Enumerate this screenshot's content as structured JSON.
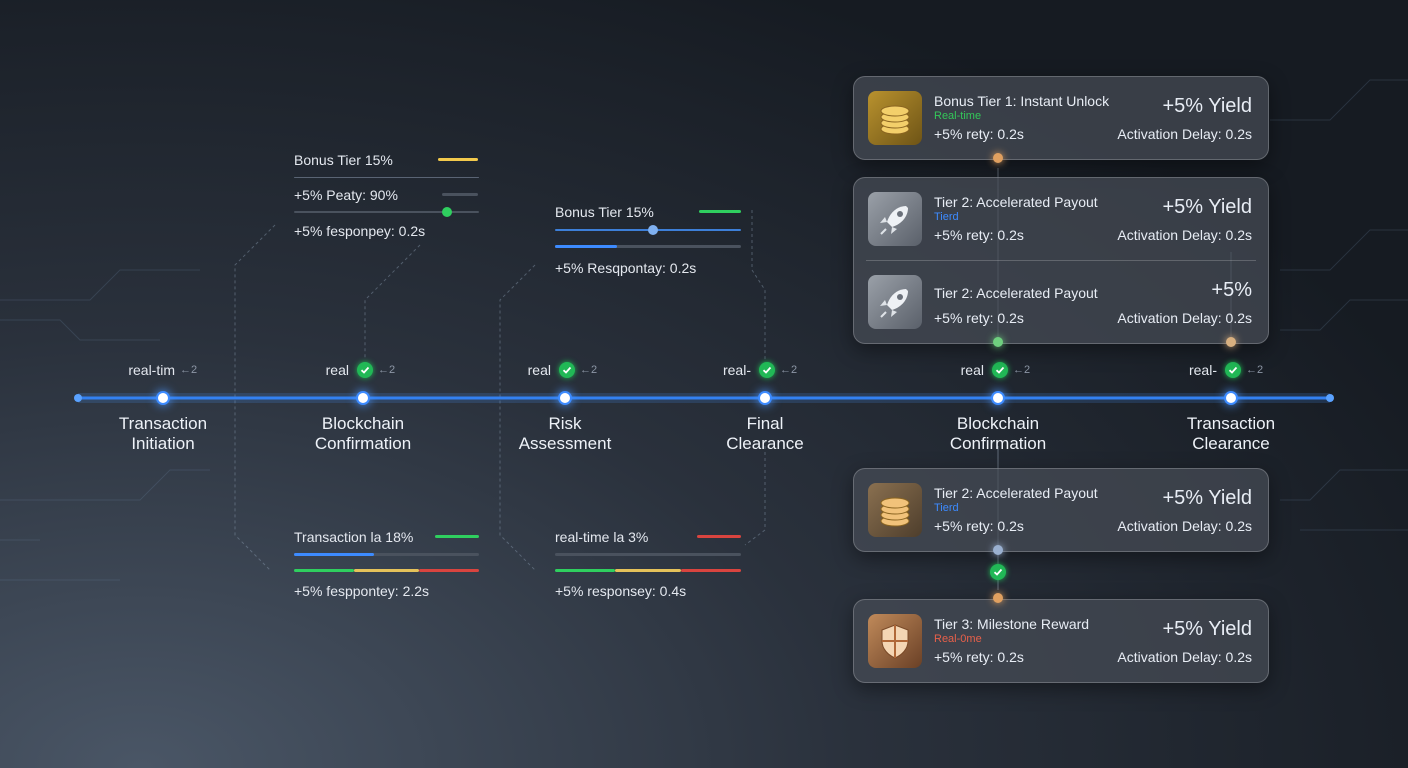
{
  "timeline": [
    {
      "status": "real-tim",
      "check": false,
      "tag": "←2",
      "label": [
        "Transaction",
        "Initiation"
      ]
    },
    {
      "status": "real",
      "check": true,
      "tag": "←2",
      "label": [
        "Blockchain",
        "Confirmation"
      ]
    },
    {
      "status": "real",
      "check": true,
      "tag": "←2",
      "label": [
        "Risk",
        "Assessment"
      ]
    },
    {
      "status": "real-",
      "check": true,
      "tag": "←2",
      "label": [
        "Final",
        "Clearance"
      ]
    },
    {
      "status": "real",
      "check": true,
      "tag": "←2",
      "label": [
        "Blockchain",
        "Confirmation"
      ]
    },
    {
      "status": "real-",
      "check": true,
      "tag": "←2",
      "label": [
        "Transaction",
        "Clearance"
      ]
    }
  ],
  "panels": [
    {
      "rows": [
        "Bonus Tier 15%",
        "+5% Peaty: 90%",
        "+5% fesponpey: 0.2s"
      ]
    },
    {
      "rows": [
        "Bonus Tier 15%",
        "+5% Resqpontay: 0.2s"
      ]
    },
    {
      "rows": [
        "Transaction la 18%",
        "+5% fesppontey: 2.2s"
      ]
    },
    {
      "rows": [
        "real-time la 3%",
        "+5% responsey: 0.4s"
      ]
    }
  ],
  "cards": [
    {
      "rows": [
        {
          "icon": "coins",
          "title": "Bonus Tier 1: Instant Unlock",
          "sub": "Real-time",
          "sub_color": "#34c759",
          "detail": "+5% rety: 0.2s",
          "yield": "+5% Yield",
          "delay": "Activation Delay: 0.2s"
        }
      ]
    },
    {
      "rows": [
        {
          "icon": "rocket",
          "title": "Tier 2: Accelerated Payout",
          "sub": "Tierd",
          "sub_color": "#3d8bff",
          "detail": "+5% rety: 0.2s",
          "yield": "+5% Yield",
          "delay": "Activation Delay: 0.2s"
        },
        {
          "icon": "rocket",
          "title": "Tier 2: Accelerated Payout",
          "detail": "+5% rety: 0.2s",
          "yield": "+5%",
          "delay": "Activation Delay: 0.2s"
        }
      ]
    },
    {
      "rows": [
        {
          "icon": "coins2",
          "title": "Tier 2: Accelerated Payout",
          "sub": "Tierd",
          "sub_color": "#3d8bff",
          "detail": "+5% rety: 0.2s",
          "yield": "+5% Yield",
          "delay": "Activation Delay: 0.2s"
        }
      ]
    },
    {
      "rows": [
        {
          "icon": "shield",
          "title": "Tier 3: Milestone Reward",
          "sub": "Real-0me",
          "sub_color": "#e8604a",
          "detail": "+5% rety: 0.2s",
          "yield": "+5% Yield",
          "delay": "Activation Delay: 0.2s"
        }
      ]
    }
  ]
}
